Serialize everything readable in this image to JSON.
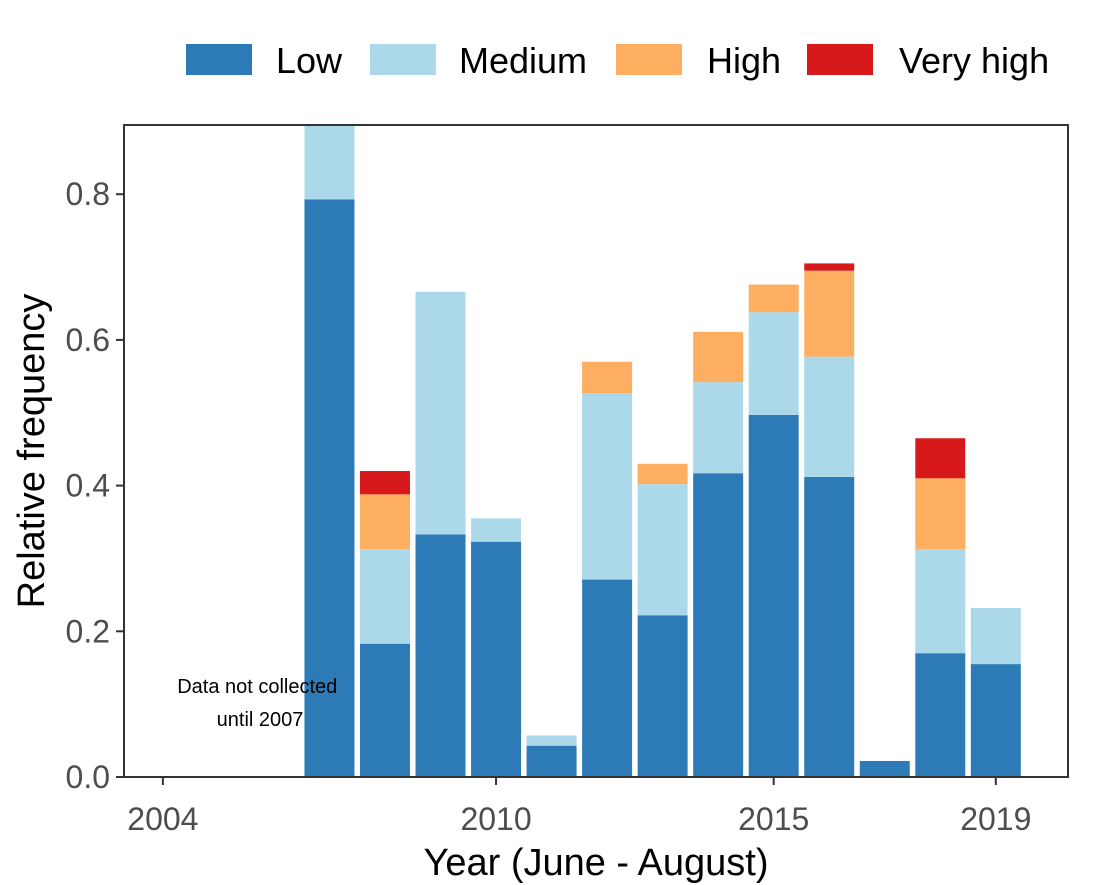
{
  "chart_data": {
    "type": "bar",
    "stacked": true,
    "xlabel": "Year (June - August)",
    "ylabel": "Relative frequency",
    "xlim": [
      2003.3,
      2020.3
    ],
    "ylim": [
      0,
      0.895
    ],
    "x_ticks": [
      2004,
      2010,
      2015,
      2019
    ],
    "y_ticks": [
      0.0,
      0.2,
      0.4,
      0.6,
      0.8
    ],
    "y_tick_labels": [
      "0.0",
      "0.2",
      "0.4",
      "0.6",
      "0.8"
    ],
    "legend_position": "top",
    "grid": false,
    "years": [
      2004,
      2005,
      2006,
      2007,
      2008,
      2009,
      2010,
      2011,
      2012,
      2013,
      2014,
      2015,
      2016,
      2017,
      2018,
      2019
    ],
    "series": [
      {
        "name": "Low",
        "color": "#2c7bb6",
        "values": [
          0,
          0,
          0,
          0.793,
          0.183,
          0.333,
          0.323,
          0.043,
          0.271,
          0.222,
          0.417,
          0.497,
          0.412,
          0.022,
          0.17,
          0.155
        ]
      },
      {
        "name": "Medium",
        "color": "#abd9e9",
        "values": [
          0,
          0,
          0,
          0.102,
          0.13,
          0.333,
          0.032,
          0.014,
          0.256,
          0.18,
          0.125,
          0.141,
          0.165,
          0,
          0.143,
          0.077
        ]
      },
      {
        "name": "High",
        "color": "#fdae61",
        "values": [
          0,
          0,
          0,
          0,
          0.075,
          0,
          0,
          0,
          0.043,
          0.028,
          0.069,
          0.038,
          0.118,
          0,
          0.097,
          0
        ]
      },
      {
        "name": "Very high",
        "color": "#d7191c",
        "values": [
          0,
          0,
          0,
          0,
          0.032,
          0,
          0,
          0,
          0,
          0,
          0,
          0,
          0.01,
          0,
          0.055,
          0
        ]
      }
    ],
    "annotations": [
      {
        "text_lines": [
          "Data not collected",
          " until 2007"
        ],
        "x": 2005.7,
        "y": 0.115
      }
    ]
  }
}
